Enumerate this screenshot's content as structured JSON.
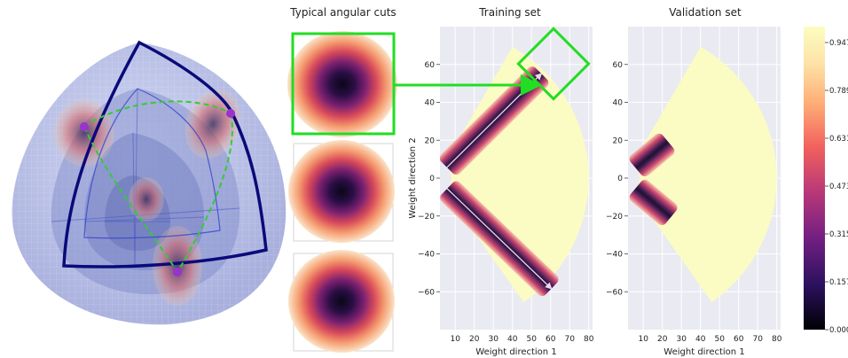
{
  "titles": {
    "cuts": "Typical angular cuts",
    "training": "Training set",
    "validation": "Validation set"
  },
  "colors": {
    "highlight": "#22dd22",
    "sphere_edge": "#0a0a7a",
    "path": "#33cc33",
    "point": "#9933cc",
    "background": "#eaeaf2",
    "fan": "#fbfbc4"
  },
  "chart_data": [
    {
      "type": "heatmap",
      "title": "Training set",
      "xlabel": "Weight direction 1",
      "ylabel": "Weight direction 2",
      "xticks": [
        10,
        20,
        30,
        40,
        50,
        60,
        70,
        80
      ],
      "yticks": [
        60,
        40,
        20,
        0,
        -20,
        -40,
        -60
      ],
      "xlim": [
        2,
        82
      ],
      "ylim": [
        -80,
        80
      ],
      "annular_sector": {
        "r_min": 8,
        "r_max": 80,
        "angle_min_deg": -55,
        "angle_max_deg": 60
      },
      "bands": [
        {
          "direction_deg": 45,
          "r_from": 8,
          "r_to": 78
        },
        {
          "direction_deg": -44,
          "r_from": 8,
          "r_to": 84
        }
      ],
      "colorscale": "magma_r"
    },
    {
      "type": "heatmap",
      "title": "Validation set",
      "xlabel": "Weight direction 1",
      "ylabel": "",
      "xticks": [
        10,
        20,
        30,
        40,
        50,
        60,
        70,
        80
      ],
      "yticks": [
        60,
        40,
        20,
        0,
        -20,
        -40,
        -60
      ],
      "xlim": [
        2,
        82
      ],
      "ylim": [
        -80,
        80
      ],
      "annular_sector": {
        "r_min": 8,
        "r_max": 80,
        "angle_min_deg": -55,
        "angle_max_deg": 60
      },
      "bands": [
        {
          "direction_deg": 40,
          "r_from": 8,
          "r_to": 30
        },
        {
          "direction_deg": -40,
          "r_from": 8,
          "r_to": 32
        }
      ],
      "colorscale": "magma_r"
    }
  ],
  "colorbar": {
    "ticks": [
      "0.9474",
      "0.7895",
      "0.6316",
      "0.4737",
      "0.3158",
      "0.1579",
      "0.0000"
    ]
  }
}
